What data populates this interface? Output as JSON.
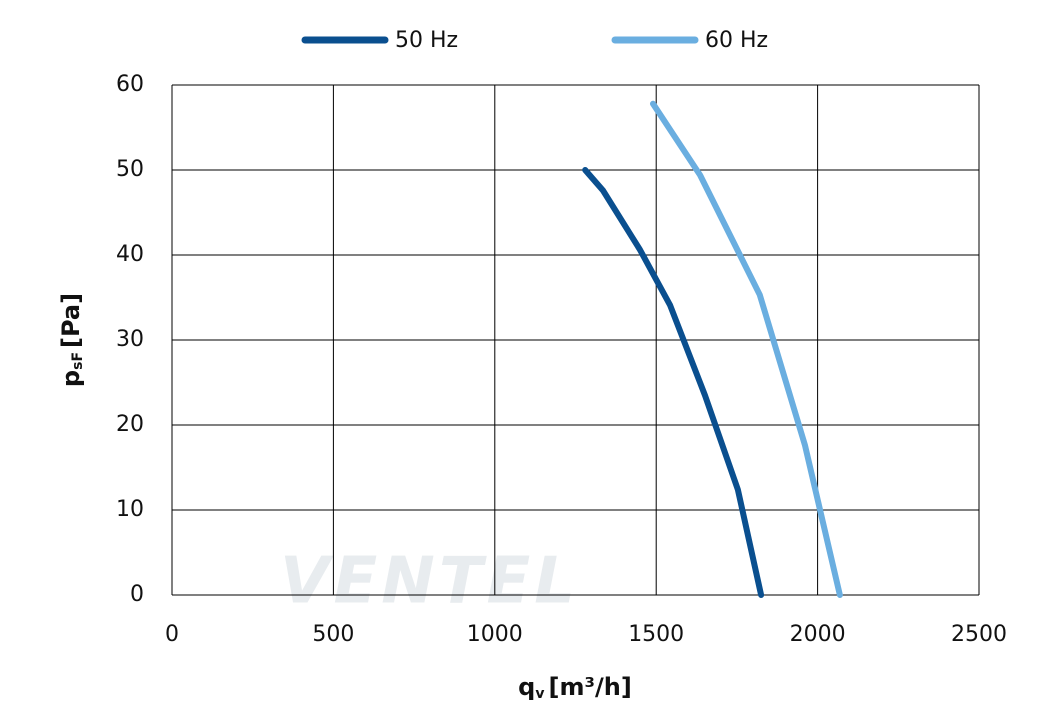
{
  "chart_data": {
    "type": "line",
    "x_label": {
      "main": "q",
      "sub": "v",
      "unit": "[m³/h]"
    },
    "y_label": {
      "main": "p",
      "sub": "sF",
      "unit": "[Pa]"
    },
    "watermark": "VENTEL",
    "series": [
      {
        "name": "50 Hz",
        "color": "#0a4f8f",
        "x": [
          1280,
          1335,
          1450,
          1543,
          1651,
          1753,
          1825
        ],
        "values": [
          50,
          47.6,
          40.6,
          34.1,
          23.5,
          12.4,
          0
        ]
      },
      {
        "name": "60 Hz",
        "color": "#6aaee0",
        "x": [
          1490,
          1636,
          1821,
          1961,
          2069
        ],
        "values": [
          57.8,
          49.4,
          35.3,
          17.6,
          0
        ]
      }
    ],
    "xlim": [
      0,
      2500
    ],
    "xticks": [
      0,
      500,
      1000,
      1500,
      2000,
      2500
    ],
    "ylim": [
      0,
      60
    ],
    "yticks": [
      0,
      10,
      20,
      30,
      40,
      50,
      60
    ],
    "grid": true,
    "legend": "top"
  }
}
